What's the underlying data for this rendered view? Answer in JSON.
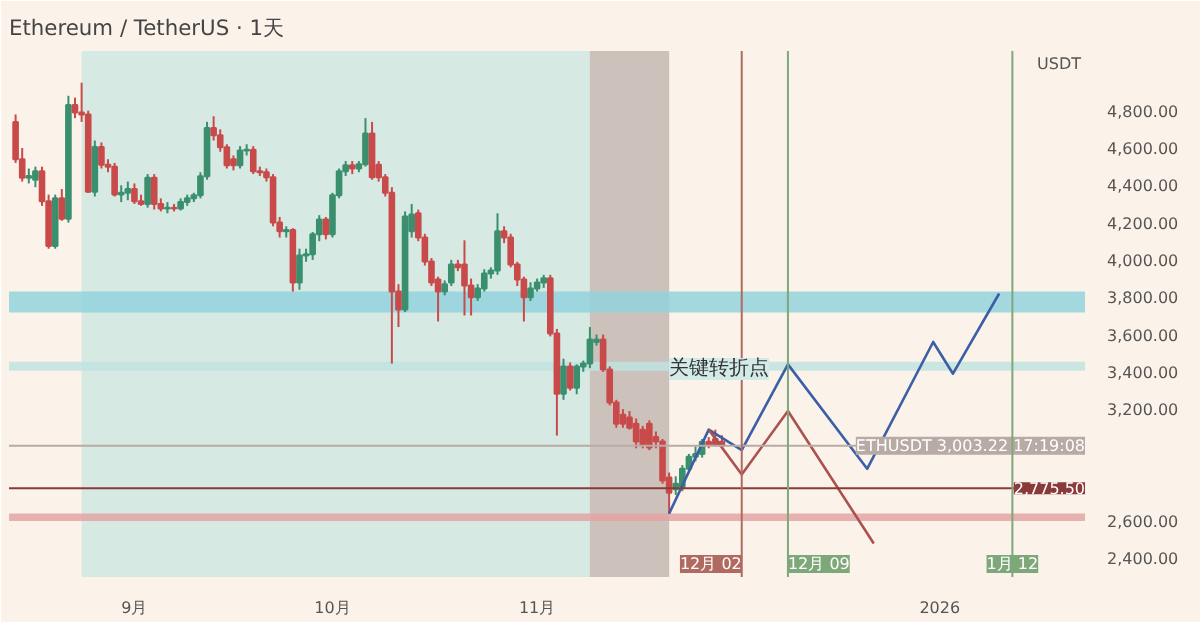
{
  "chart_data": {
    "type": "candlestick",
    "title": "Ethereum / TetherUS · 1天",
    "ylabel": "USDT",
    "x": [
      "2025-08-14",
      "2025-08-15",
      "2025-08-16",
      "2025-08-17",
      "2025-08-18",
      "2025-08-19",
      "2025-08-20",
      "2025-08-21",
      "2025-08-22",
      "2025-08-23",
      "2025-08-24",
      "2025-08-25",
      "2025-08-26",
      "2025-08-27",
      "2025-08-28",
      "2025-08-29",
      "2025-08-30",
      "2025-08-31",
      "2025-09-01",
      "2025-09-02",
      "2025-09-03",
      "2025-09-04",
      "2025-09-05",
      "2025-09-06",
      "2025-09-07",
      "2025-09-08",
      "2025-09-09",
      "2025-09-10",
      "2025-09-11",
      "2025-09-12",
      "2025-09-13",
      "2025-09-14",
      "2025-09-15",
      "2025-09-16",
      "2025-09-17",
      "2025-09-18",
      "2025-09-19",
      "2025-09-20",
      "2025-09-21",
      "2025-09-22",
      "2025-09-23",
      "2025-09-24",
      "2025-09-25",
      "2025-09-26",
      "2025-09-27",
      "2025-09-28",
      "2025-09-29",
      "2025-09-30",
      "2025-10-01",
      "2025-10-02",
      "2025-10-03",
      "2025-10-04",
      "2025-10-05",
      "2025-10-06",
      "2025-10-07",
      "2025-10-08",
      "2025-10-09",
      "2025-10-10",
      "2025-10-11",
      "2025-10-12",
      "2025-10-13",
      "2025-10-14",
      "2025-10-15",
      "2025-10-16",
      "2025-10-17",
      "2025-10-18",
      "2025-10-19",
      "2025-10-20",
      "2025-10-21",
      "2025-10-22",
      "2025-10-23",
      "2025-10-24",
      "2025-10-25",
      "2025-10-26",
      "2025-10-27",
      "2025-10-28",
      "2025-10-29",
      "2025-10-30",
      "2025-10-31",
      "2025-11-01",
      "2025-11-02",
      "2025-11-03",
      "2025-11-04",
      "2025-11-05",
      "2025-11-06",
      "2025-11-07",
      "2025-11-08",
      "2025-11-09",
      "2025-11-10",
      "2025-11-11",
      "2025-11-12",
      "2025-11-13",
      "2025-11-14",
      "2025-11-15",
      "2025-11-16",
      "2025-11-17",
      "2025-11-18",
      "2025-11-19",
      "2025-11-20",
      "2025-11-21",
      "2025-11-22",
      "2025-11-23",
      "2025-11-24",
      "2025-11-25",
      "2025-11-26",
      "2025-11-27",
      "2025-11-28",
      "2025-11-29"
    ],
    "ohlc": [
      [
        4740,
        4780,
        4520,
        4540
      ],
      [
        4540,
        4600,
        4420,
        4440
      ],
      [
        4440,
        4490,
        4410,
        4450
      ],
      [
        4430,
        4500,
        4390,
        4475
      ],
      [
        4475,
        4500,
        4290,
        4315
      ],
      [
        4315,
        4350,
        4060,
        4075
      ],
      [
        4075,
        4350,
        4060,
        4330
      ],
      [
        4330,
        4380,
        4210,
        4220
      ],
      [
        4220,
        4880,
        4200,
        4830
      ],
      [
        4830,
        4870,
        4760,
        4790
      ],
      [
        4790,
        4950,
        4740,
        4780
      ],
      [
        4780,
        4800,
        4360,
        4365
      ],
      [
        4365,
        4640,
        4340,
        4605
      ],
      [
        4605,
        4630,
        4490,
        4510
      ],
      [
        4510,
        4540,
        4470,
        4500
      ],
      [
        4500,
        4520,
        4340,
        4350
      ],
      [
        4350,
        4400,
        4310,
        4360
      ],
      [
        4360,
        4420,
        4320,
        4380
      ],
      [
        4380,
        4410,
        4300,
        4315
      ],
      [
        4315,
        4350,
        4290,
        4300
      ],
      [
        4300,
        4460,
        4280,
        4440
      ],
      [
        4440,
        4460,
        4270,
        4300
      ],
      [
        4300,
        4330,
        4260,
        4275
      ],
      [
        4275,
        4310,
        4250,
        4280
      ],
      [
        4280,
        4300,
        4260,
        4275
      ],
      [
        4275,
        4330,
        4265,
        4310
      ],
      [
        4310,
        4350,
        4290,
        4330
      ],
      [
        4330,
        4360,
        4310,
        4346
      ],
      [
        4346,
        4470,
        4330,
        4449
      ],
      [
        4449,
        4740,
        4430,
        4707
      ],
      [
        4707,
        4770,
        4640,
        4668
      ],
      [
        4668,
        4700,
        4580,
        4604
      ],
      [
        4604,
        4620,
        4490,
        4507
      ],
      [
        4539,
        4560,
        4480,
        4507
      ],
      [
        4507,
        4610,
        4490,
        4587
      ],
      [
        4587,
        4620,
        4560,
        4590
      ],
      [
        4590,
        4610,
        4460,
        4475
      ],
      [
        4475,
        4500,
        4450,
        4470
      ],
      [
        4470,
        4490,
        4420,
        4443
      ],
      [
        4443,
        4460,
        4180,
        4201
      ],
      [
        4201,
        4230,
        4120,
        4153
      ],
      [
        4153,
        4180,
        4120,
        4160
      ],
      [
        4160,
        4170,
        3830,
        3879
      ],
      [
        3879,
        4060,
        3840,
        4024
      ],
      [
        4024,
        4060,
        3990,
        4030
      ],
      [
        4030,
        4150,
        4000,
        4137
      ],
      [
        4137,
        4240,
        4100,
        4217
      ],
      [
        4217,
        4230,
        4110,
        4137
      ],
      [
        4137,
        4360,
        4120,
        4346
      ],
      [
        4346,
        4490,
        4330,
        4475
      ],
      [
        4475,
        4530,
        4450,
        4507
      ],
      [
        4507,
        4530,
        4460,
        4490
      ],
      [
        4490,
        4530,
        4470,
        4513
      ],
      [
        4513,
        4760,
        4500,
        4678
      ],
      [
        4678,
        4740,
        4430,
        4443
      ],
      [
        4510,
        4530,
        4420,
        4443
      ],
      [
        4443,
        4460,
        4340,
        4360
      ],
      [
        4360,
        4390,
        3444,
        3831
      ],
      [
        3831,
        3870,
        3640,
        3734
      ],
      [
        3734,
        4260,
        3720,
        4233
      ],
      [
        4153,
        4300,
        4120,
        4243
      ],
      [
        4250,
        4270,
        4100,
        4120
      ],
      [
        4120,
        4140,
        3970,
        3992
      ],
      [
        3992,
        4010,
        3860,
        3879
      ],
      [
        3895,
        3910,
        3670,
        3831
      ],
      [
        3831,
        3890,
        3810,
        3870
      ],
      [
        3879,
        4000,
        3860,
        3976
      ],
      [
        3976,
        4000,
        3940,
        3960
      ],
      [
        3976,
        4105,
        3702,
        3863
      ],
      [
        3863,
        3900,
        3702,
        3800
      ],
      [
        3800,
        3870,
        3780,
        3847
      ],
      [
        3847,
        3950,
        3830,
        3927
      ],
      [
        3927,
        3960,
        3900,
        3943
      ],
      [
        3943,
        4250,
        3920,
        4153
      ],
      [
        4153,
        4180,
        4090,
        4120
      ],
      [
        4120,
        4140,
        3960,
        3976
      ],
      [
        3976,
        3990,
        3860,
        3895
      ],
      [
        3895,
        3910,
        3670,
        3800
      ],
      [
        3800,
        3880,
        3780,
        3847
      ],
      [
        3847,
        3900,
        3830,
        3879
      ],
      [
        3879,
        3920,
        3850,
        3902
      ],
      [
        3902,
        3920,
        3590,
        3605
      ],
      [
        3605,
        3630,
        3058,
        3283
      ],
      [
        3283,
        3470,
        3250,
        3428
      ],
      [
        3428,
        3450,
        3300,
        3315
      ],
      [
        3315,
        3440,
        3280,
        3428
      ],
      [
        3428,
        3460,
        3400,
        3444
      ],
      [
        3444,
        3640,
        3420,
        3573
      ],
      [
        3560,
        3600,
        3540,
        3573
      ],
      [
        3573,
        3600,
        3400,
        3412
      ],
      [
        3412,
        3430,
        3220,
        3235
      ],
      [
        3235,
        3250,
        3100,
        3122
      ],
      [
        3170,
        3200,
        3100,
        3122
      ],
      [
        3155,
        3190,
        3090,
        3100
      ],
      [
        3122,
        3150,
        2990,
        3026
      ],
      [
        3090,
        3110,
        2990,
        3010
      ],
      [
        3122,
        3140,
        2980,
        2994
      ],
      [
        3050,
        3080,
        2990,
        3026
      ],
      [
        3026,
        3040,
        2800,
        2817
      ],
      [
        2833,
        2860,
        2639,
        2752
      ],
      [
        2770,
        2840,
        2740,
        2800
      ],
      [
        2784,
        2900,
        2760,
        2880
      ],
      [
        2880,
        2960,
        2860,
        2945
      ],
      [
        2945,
        3000,
        2920,
        2960
      ],
      [
        2960,
        3040,
        2940,
        3025
      ],
      [
        3025,
        3050,
        2990,
        3010
      ],
      [
        3040,
        3090,
        3000,
        3010
      ],
      [
        3025,
        3060,
        2990,
        3003
      ]
    ],
    "series": [
      {
        "type": "line",
        "color": "#3b5ea6",
        "x": [
          "2025-11-21",
          "2025-11-27",
          "2025-12-02",
          "2025-12-09",
          "2025-12-21",
          "2025-12-31",
          "2026-01-03",
          "2026-01-10"
        ],
        "values": [
          2640,
          3090,
          2980,
          3440,
          2880,
          3560,
          3390,
          3820
        ]
      },
      {
        "type": "line",
        "color": "#a9524f",
        "x": [
          "2025-11-27",
          "2025-12-02",
          "2025-12-09",
          "2025-12-22"
        ],
        "values": [
          3090,
          2850,
          3190,
          2480
        ]
      }
    ],
    "xlim": [
      "2025-08-13",
      "2026-01-23"
    ],
    "ylim": [
      2300,
      5120
    ],
    "xticks": [
      {
        "value": "2025-09-01",
        "label": "9月"
      },
      {
        "value": "2025-10-01",
        "label": "10月"
      },
      {
        "value": "2025-11-01",
        "label": "11月"
      },
      {
        "value": "2026-01-01",
        "label": "2026"
      }
    ],
    "yticks": [
      {
        "value": 2400,
        "label": "2,400.00"
      },
      {
        "value": 2600,
        "label": "2,600.00"
      },
      {
        "value": 3200,
        "label": "3,200.00"
      },
      {
        "value": 3400,
        "label": "3,400.00"
      },
      {
        "value": 3600,
        "label": "3,600.00"
      },
      {
        "value": 3800,
        "label": "3,800.00"
      },
      {
        "value": 4000,
        "label": "4,000.00"
      },
      {
        "value": 4200,
        "label": "4,200.00"
      },
      {
        "value": 4400,
        "label": "4,400.00"
      },
      {
        "value": 4600,
        "label": "4,600.00"
      },
      {
        "value": 4800,
        "label": "4,800.00"
      }
    ],
    "ref_lines": [
      {
        "axis": "y",
        "value": 2775.5,
        "label": "2,775.50",
        "color": "#8b3a3a"
      },
      {
        "axis": "y",
        "value": 3003.22,
        "label": "ETHUSDT 3,003.22 17:19:08",
        "color": "#b8aaa4"
      },
      {
        "axis": "x",
        "value": "2025-12-02",
        "label": "12月 02",
        "color": "#b06a60"
      },
      {
        "axis": "x",
        "value": "2025-12-09",
        "label": "12月 09",
        "color": "#7fa87a"
      },
      {
        "axis": "x",
        "value": "2026-01-12",
        "label": "1月 12",
        "color": "#7fa87a"
      }
    ],
    "bands": [
      {
        "axis": "x",
        "from": "2025-08-24",
        "to": "2025-11-21",
        "color": "#cfe6e2"
      },
      {
        "axis": "x",
        "from": "2025-11-09",
        "to": "2025-11-21",
        "color": "#cbbab5"
      },
      {
        "axis": "y",
        "from": 3718,
        "to": 3831,
        "color": "#93d2dd"
      },
      {
        "axis": "y",
        "from": 3406,
        "to": 3454,
        "color": "#bfe3e0"
      },
      {
        "axis": "y",
        "from": 2600,
        "to": 2640,
        "color": "#e3a4a4"
      }
    ],
    "annotations": [
      "关键转折点"
    ],
    "grid": false,
    "marker": "none",
    "line_style": "solid"
  }
}
